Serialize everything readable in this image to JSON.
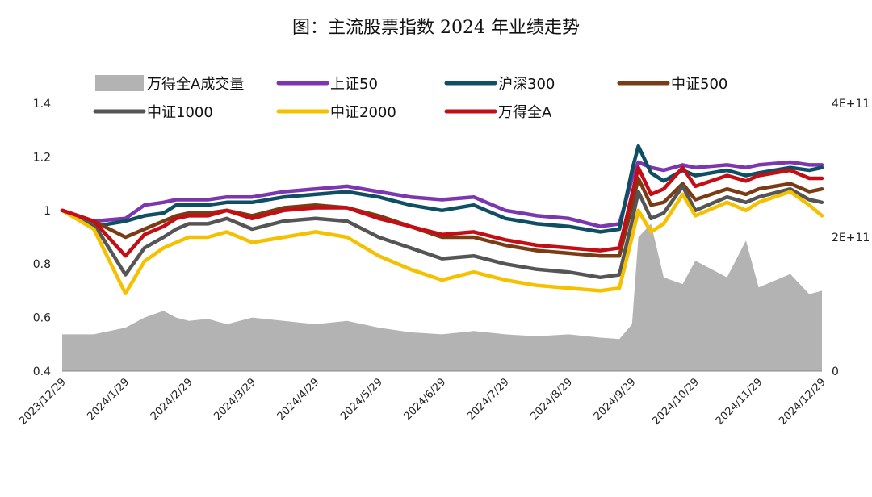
{
  "chart_data": {
    "type": "line",
    "title": "图：主流股票指数 2024 年业绩走势",
    "legend_position": "top",
    "grid": false,
    "x_tick_labels": [
      "2023/12/29",
      "2024/1/29",
      "2024/2/29",
      "2024/3/29",
      "2024/4/29",
      "2024/5/29",
      "2024/6/29",
      "2024/7/29",
      "2024/8/29",
      "2024/9/29",
      "2024/10/29",
      "2024/11/29",
      "2024/12/29"
    ],
    "y_left": {
      "ylim": [
        0.4,
        1.4
      ],
      "ticks": [
        "0.4",
        "0.6",
        "0.8",
        "1",
        "1.2",
        "1.4"
      ]
    },
    "y_right": {
      "ylim": [
        0,
        400000000000
      ],
      "ticks": [
        "0",
        "2E+11",
        "4E+11"
      ]
    },
    "x": [
      0,
      0.5,
      1,
      1.3,
      1.6,
      1.8,
      2,
      2.3,
      2.6,
      3,
      3.5,
      4,
      4.5,
      5,
      5.5,
      6,
      6.5,
      7,
      7.5,
      8,
      8.5,
      8.8,
      9,
      9.1,
      9.3,
      9.5,
      9.8,
      10,
      10.5,
      10.8,
      11,
      11.5,
      11.8,
      12
    ],
    "series": [
      {
        "name": "万得全A成交量",
        "kind": "area",
        "axis": "right",
        "color": "#b3b3b3",
        "values": [
          55000000000.0,
          55000000000.0,
          65000000000.0,
          80000000000.0,
          90000000000.0,
          80000000000.0,
          75000000000.0,
          78000000000.0,
          70000000000.0,
          80000000000.0,
          75000000000.0,
          70000000000.0,
          75000000000.0,
          65000000000.0,
          58000000000.0,
          55000000000.0,
          60000000000.0,
          55000000000.0,
          52000000000.0,
          55000000000.0,
          50000000000.0,
          48000000000.0,
          70000000000.0,
          200000000000.0,
          220000000000.0,
          140000000000.0,
          130000000000.0,
          165000000000.0,
          140000000000.0,
          195000000000.0,
          125000000000.0,
          145000000000.0,
          115000000000.0,
          120000000000.0
        ]
      },
      {
        "name": "上证50",
        "kind": "line",
        "axis": "left",
        "color": "#7b36b0",
        "values": [
          1.0,
          0.96,
          0.97,
          1.02,
          1.03,
          1.04,
          1.04,
          1.04,
          1.05,
          1.05,
          1.07,
          1.08,
          1.09,
          1.07,
          1.05,
          1.04,
          1.05,
          1.0,
          0.98,
          0.97,
          0.94,
          0.95,
          1.12,
          1.18,
          1.16,
          1.15,
          1.17,
          1.16,
          1.17,
          1.16,
          1.17,
          1.18,
          1.17,
          1.17
        ]
      },
      {
        "name": "沪深300",
        "kind": "line",
        "axis": "left",
        "color": "#0f4f63",
        "values": [
          1.0,
          0.94,
          0.96,
          0.98,
          0.99,
          1.02,
          1.02,
          1.02,
          1.03,
          1.03,
          1.05,
          1.06,
          1.07,
          1.05,
          1.02,
          1.0,
          1.02,
          0.97,
          0.95,
          0.94,
          0.92,
          0.93,
          1.15,
          1.24,
          1.14,
          1.11,
          1.15,
          1.13,
          1.15,
          1.13,
          1.14,
          1.16,
          1.15,
          1.16
        ]
      },
      {
        "name": "中证500",
        "kind": "line",
        "axis": "left",
        "color": "#7b3c15",
        "values": [
          1.0,
          0.96,
          0.9,
          0.93,
          0.96,
          0.98,
          0.99,
          0.99,
          1.0,
          0.98,
          1.01,
          1.02,
          1.01,
          0.98,
          0.94,
          0.9,
          0.9,
          0.87,
          0.85,
          0.84,
          0.83,
          0.83,
          1.02,
          1.12,
          1.02,
          1.03,
          1.1,
          1.04,
          1.08,
          1.06,
          1.08,
          1.1,
          1.07,
          1.08
        ]
      },
      {
        "name": "中证1000",
        "kind": "line",
        "axis": "left",
        "color": "#555555",
        "values": [
          1.0,
          0.95,
          0.76,
          0.86,
          0.9,
          0.93,
          0.95,
          0.95,
          0.97,
          0.93,
          0.96,
          0.97,
          0.96,
          0.9,
          0.86,
          0.82,
          0.83,
          0.8,
          0.78,
          0.77,
          0.75,
          0.76,
          0.96,
          1.07,
          0.97,
          0.99,
          1.09,
          1.0,
          1.05,
          1.03,
          1.05,
          1.08,
          1.04,
          1.03
        ]
      },
      {
        "name": "中证2000",
        "kind": "line",
        "axis": "left",
        "color": "#f5c000",
        "values": [
          1.0,
          0.93,
          0.69,
          0.81,
          0.86,
          0.88,
          0.9,
          0.9,
          0.92,
          0.88,
          0.9,
          0.92,
          0.9,
          0.83,
          0.78,
          0.74,
          0.77,
          0.74,
          0.72,
          0.71,
          0.7,
          0.71,
          0.9,
          1.0,
          0.92,
          0.95,
          1.06,
          0.98,
          1.03,
          1.0,
          1.03,
          1.07,
          1.02,
          0.98
        ]
      },
      {
        "name": "万得全A",
        "kind": "line",
        "axis": "left",
        "color": "#c40e16",
        "values": [
          1.0,
          0.96,
          0.83,
          0.91,
          0.94,
          0.97,
          0.98,
          0.98,
          1.0,
          0.97,
          1.0,
          1.01,
          1.01,
          0.97,
          0.94,
          0.91,
          0.92,
          0.89,
          0.87,
          0.86,
          0.85,
          0.86,
          1.06,
          1.16,
          1.06,
          1.08,
          1.16,
          1.09,
          1.13,
          1.11,
          1.13,
          1.15,
          1.12,
          1.12
        ]
      }
    ]
  }
}
